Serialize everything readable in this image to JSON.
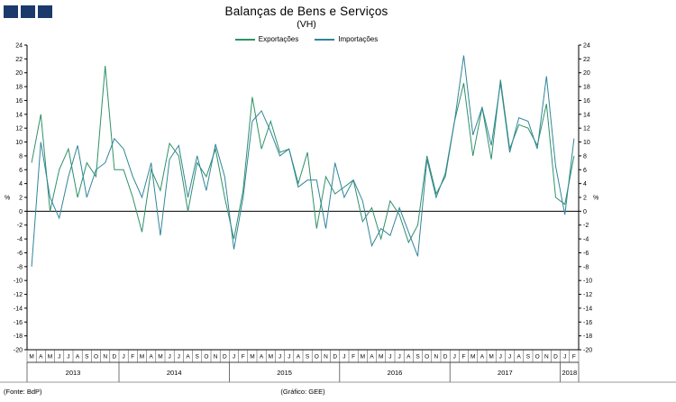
{
  "logo": {
    "color": "#1b3a6b",
    "squares": 3
  },
  "header": {
    "title": "Balanças de Bens e Serviços",
    "subtitle": "(VH)"
  },
  "footer": {
    "source": "(Fonte: BdP)",
    "credit": "(Gráfico: GEE)"
  },
  "chart_data": {
    "type": "line",
    "title": "Balanças de Bens e Serviços",
    "subtitle": "(VH)",
    "ylabel": "%",
    "unit": "%",
    "unit_at_value": 2,
    "ylim": [
      -20,
      24
    ],
    "ytick_step": 2,
    "grid": false,
    "legend_position": "top-center",
    "x_labels": [
      "M",
      "A",
      "M",
      "J",
      "J",
      "A",
      "S",
      "O",
      "N",
      "D",
      "J",
      "F",
      "M",
      "A",
      "M",
      "J",
      "J",
      "A",
      "S",
      "O",
      "N",
      "D",
      "J",
      "F",
      "M",
      "A",
      "M",
      "J",
      "J",
      "A",
      "S",
      "O",
      "N",
      "D",
      "J",
      "F",
      "M",
      "A",
      "M",
      "J",
      "J",
      "A",
      "S",
      "O",
      "N",
      "D",
      "J",
      "F",
      "M",
      "A",
      "M",
      "J",
      "J",
      "A",
      "S",
      "O",
      "N",
      "D",
      "J",
      "F"
    ],
    "year_groups": [
      {
        "label": "2013",
        "count": 10
      },
      {
        "label": "2014",
        "count": 12
      },
      {
        "label": "2015",
        "count": 12
      },
      {
        "label": "2016",
        "count": 12
      },
      {
        "label": "2017",
        "count": 12
      },
      {
        "label": "2018",
        "count": 2
      }
    ],
    "series": [
      {
        "key": "exportacoes",
        "name": "Exportações",
        "color": "#2e9167",
        "values": [
          7,
          14,
          0,
          6,
          9,
          2,
          7,
          5,
          21,
          6,
          6,
          2,
          -3,
          6,
          3,
          9.8,
          8,
          0,
          7,
          5,
          9,
          2,
          -4,
          3,
          16.5,
          9,
          13,
          8.5,
          9,
          4,
          8.5,
          -2.5,
          5,
          2.5,
          3.5,
          4.5,
          -1.5,
          0.5,
          -4,
          1.5,
          -0.5,
          -4.5,
          -2,
          8,
          2.5,
          5,
          13,
          18.5,
          8,
          15,
          7.5,
          19,
          9,
          12.5,
          12,
          9.5,
          15.5,
          2,
          1,
          8
        ]
      },
      {
        "key": "importacoes",
        "name": "Importações",
        "color": "#31859c",
        "values": [
          -8,
          10,
          2,
          -1,
          5,
          9.5,
          2,
          6,
          7,
          10.5,
          9,
          5,
          2,
          7,
          -3.5,
          7.5,
          9.5,
          2,
          8,
          3,
          9.7,
          5,
          -5.5,
          2,
          13,
          14.5,
          11.5,
          8,
          9,
          3.5,
          4.5,
          4.5,
          -2.5,
          7,
          2,
          4.5,
          1.5,
          -5,
          -2.5,
          -3.5,
          0.5,
          -3,
          -6.5,
          7.5,
          2,
          5.5,
          13,
          22.5,
          11,
          15,
          9.5,
          18.5,
          8.5,
          13.5,
          13,
          9,
          19.5,
          6.5,
          -0.5,
          10.5
        ]
      }
    ]
  }
}
